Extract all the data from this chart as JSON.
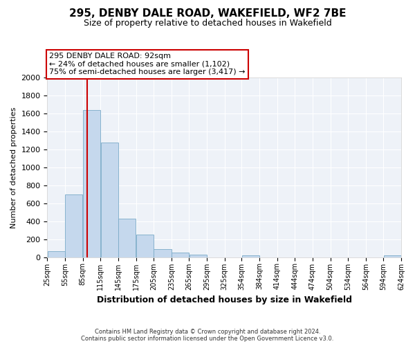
{
  "title": "295, DENBY DALE ROAD, WAKEFIELD, WF2 7BE",
  "subtitle": "Size of property relative to detached houses in Wakefield",
  "xlabel": "Distribution of detached houses by size in Wakefield",
  "ylabel": "Number of detached properties",
  "bar_edges": [
    25,
    55,
    85,
    115,
    145,
    175,
    205,
    235,
    265,
    295,
    325,
    354,
    384,
    414,
    444,
    474,
    504,
    534,
    564,
    594,
    624
  ],
  "bar_heights": [
    65,
    700,
    1640,
    1280,
    430,
    250,
    88,
    52,
    30,
    0,
    0,
    18,
    0,
    0,
    0,
    0,
    0,
    0,
    0,
    18
  ],
  "bar_color": "#c5d8ed",
  "bar_edge_color": "#7aaac8",
  "property_line_x": 92,
  "property_line_color": "#cc0000",
  "ylim": [
    0,
    2000
  ],
  "annotation_title": "295 DENBY DALE ROAD: 92sqm",
  "annotation_line1": "← 24% of detached houses are smaller (1,102)",
  "annotation_line2": "75% of semi-detached houses are larger (3,417) →",
  "annotation_box_color": "#ffffff",
  "annotation_box_edge": "#cc0000",
  "footer_line1": "Contains HM Land Registry data © Crown copyright and database right 2024.",
  "footer_line2": "Contains public sector information licensed under the Open Government Licence v3.0.",
  "tick_labels": [
    "25sqm",
    "55sqm",
    "85sqm",
    "115sqm",
    "145sqm",
    "175sqm",
    "205sqm",
    "235sqm",
    "265sqm",
    "295sqm",
    "325sqm",
    "354sqm",
    "384sqm",
    "414sqm",
    "444sqm",
    "474sqm",
    "504sqm",
    "534sqm",
    "564sqm",
    "594sqm",
    "624sqm"
  ],
  "background_color": "#eef2f8",
  "grid_color": "#ffffff",
  "title_fontsize": 11,
  "subtitle_fontsize": 9,
  "ylabel_fontsize": 8,
  "xlabel_fontsize": 9,
  "ytick_fontsize": 8,
  "xtick_fontsize": 7,
  "annot_fontsize": 8,
  "footer_fontsize": 6
}
